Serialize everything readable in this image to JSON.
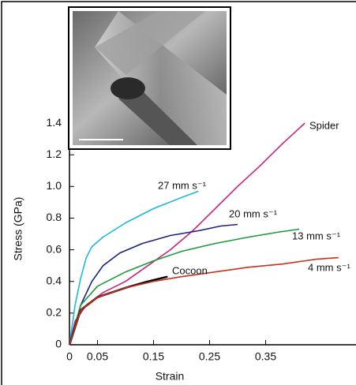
{
  "chart_data": {
    "type": "line",
    "x_label": "Strain",
    "y_label": "Stress (GPa)",
    "xlim": [
      0,
      0.5
    ],
    "ylim": [
      0,
      1.5
    ],
    "xticks": [
      0,
      0.05,
      0.15,
      0.25,
      0.35
    ],
    "yticks": [
      0,
      0.2,
      0.4,
      0.6,
      0.8,
      {
        "value": 1,
        "label": "1.0"
      },
      1.2,
      1.4
    ],
    "grid": false,
    "series": [
      {
        "name": "Spider",
        "color": "#c8237c",
        "x": [
          0,
          0.01,
          0.03,
          0.06,
          0.1,
          0.14,
          0.18,
          0.22,
          0.26,
          0.3,
          0.34,
          0.38,
          0.42
        ],
        "values": [
          0,
          0.15,
          0.25,
          0.33,
          0.4,
          0.5,
          0.6,
          0.72,
          0.86,
          1.0,
          1.13,
          1.27,
          1.4
        ]
      },
      {
        "name": "27 mm s⁻¹",
        "color": "#1eb8d8",
        "x": [
          0,
          0.01,
          0.02,
          0.03,
          0.04,
          0.06,
          0.1,
          0.15,
          0.2,
          0.23
        ],
        "values": [
          0,
          0.25,
          0.42,
          0.55,
          0.62,
          0.68,
          0.77,
          0.86,
          0.93,
          0.97
        ]
      },
      {
        "name": "20 mm s⁻¹",
        "color": "#1a237e",
        "x": [
          0,
          0.02,
          0.04,
          0.06,
          0.09,
          0.13,
          0.18,
          0.23,
          0.27,
          0.3
        ],
        "values": [
          0,
          0.25,
          0.4,
          0.5,
          0.58,
          0.64,
          0.69,
          0.72,
          0.75,
          0.76
        ]
      },
      {
        "name": "13 mm s⁻¹",
        "color": "#1e9a3a",
        "x": [
          0,
          0.02,
          0.05,
          0.1,
          0.15,
          0.2,
          0.26,
          0.32,
          0.37,
          0.41
        ],
        "values": [
          0,
          0.25,
          0.37,
          0.46,
          0.53,
          0.59,
          0.64,
          0.68,
          0.71,
          0.73
        ]
      },
      {
        "name": "Cocoon",
        "color": "#000000",
        "x": [
          0,
          0.02,
          0.05,
          0.1,
          0.14,
          0.175
        ],
        "values": [
          0,
          0.22,
          0.3,
          0.36,
          0.4,
          0.43
        ]
      },
      {
        "name": "4 mm s⁻¹",
        "color": "#c8321e",
        "x": [
          0,
          0.02,
          0.05,
          0.1,
          0.15,
          0.2,
          0.26,
          0.32,
          0.38,
          0.44,
          0.48
        ],
        "values": [
          0,
          0.22,
          0.3,
          0.36,
          0.4,
          0.43,
          0.46,
          0.49,
          0.51,
          0.54,
          0.55
        ]
      }
    ]
  }
}
